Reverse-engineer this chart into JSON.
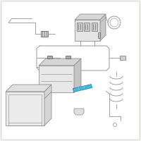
{
  "background_color": "#f0f0ee",
  "line_color": "#888888",
  "dark_line": "#555555",
  "highlight_color": "#4ab8d8",
  "figsize": [
    2.0,
    2.0
  ],
  "dpi": 100,
  "lw": 0.55
}
